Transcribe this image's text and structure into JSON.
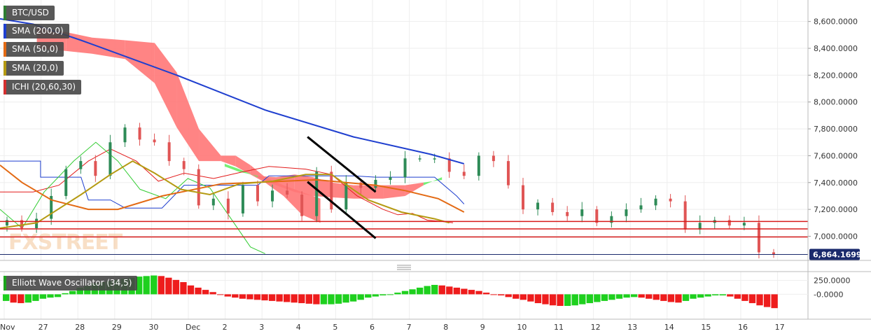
{
  "indicators": [
    {
      "label": "BTC/USD",
      "color": "#2e7d32"
    },
    {
      "label": "SMA (200,0)",
      "color": "#1f3fcf"
    },
    {
      "label": "SMA (50,0)",
      "color": "#e36a14"
    },
    {
      "label": "SMA (20,0)",
      "color": "#b59a12"
    },
    {
      "label": "ICHI (20,60,30)",
      "color": "#d32f2f"
    }
  ],
  "oscillator": {
    "label": "Elliott Wave Oscillator (34,5)",
    "color": "#1aa31a"
  },
  "watermark": "FXSTREET",
  "colors": {
    "up": "#2e8b57",
    "down": "#e05555",
    "cloud_up": "#66ee66",
    "cloud_down": "#ff7777",
    "level": "#d81b1b",
    "channel": "#000000",
    "sma200": "#1f3fcf",
    "sma50": "#e36a14",
    "sma20": "#b59a12",
    "kijun": "#1f3fcf",
    "tenkan": "#e31b1b",
    "chikou": "#33cc33",
    "price_tag": "#1a2a6c"
  },
  "chart_data": [
    {
      "type": "candlestick",
      "title": "BTC/USD",
      "x_ticks": [
        "Nov",
        "27",
        "28",
        "29",
        "30",
        "Dec",
        "2",
        "3",
        "4",
        "5",
        "6",
        "7",
        "8",
        "9",
        "10",
        "11",
        "12",
        "13",
        "14",
        "15",
        "16",
        "17"
      ],
      "y_ticks": [
        "8,600.0000",
        "8,400.0000",
        "8,200.0000",
        "8,000.0000",
        "7,800.0000",
        "7,600.0000",
        "7,400.0000",
        "7,200.0000",
        "7,000.0000"
      ],
      "ylim": [
        6820,
        8760
      ],
      "last_price": "6,864.1699",
      "levels": [
        7110,
        7055,
        6995
      ],
      "channel": [
        [
          [
            8.35,
            7740
          ],
          [
            10.2,
            7330
          ]
        ],
        [
          [
            8.35,
            7405
          ],
          [
            10.2,
            6985
          ]
        ]
      ],
      "close": [
        7120,
        7060,
        7130,
        7300,
        7500,
        7560,
        7450,
        7700,
        7810,
        7720,
        7700,
        7560,
        7500,
        7230,
        7280,
        7170,
        7380,
        7260,
        7340,
        7310,
        7150,
        7480,
        7200,
        7400,
        7360,
        7420,
        7440,
        7580,
        7580,
        7580,
        7480,
        7450,
        7600,
        7560,
        7380,
        7200,
        7250,
        7180,
        7150,
        7200,
        7100,
        7150,
        7200,
        7230,
        7280,
        7260,
        7050,
        7100,
        7120,
        7080,
        7100,
        6880,
        6864
      ],
      "sma200": [
        [
          0,
          8620
        ],
        [
          0.9,
          8580
        ],
        [
          2.2,
          8460
        ],
        [
          4.8,
          8200
        ],
        [
          7.2,
          7940
        ],
        [
          9.6,
          7740
        ],
        [
          11.7,
          7610
        ],
        [
          12.6,
          7540
        ]
      ],
      "sma50": [
        [
          0,
          7530
        ],
        [
          0.6,
          7400
        ],
        [
          1.4,
          7270
        ],
        [
          2.4,
          7200
        ],
        [
          3.2,
          7200
        ],
        [
          4.4,
          7300
        ],
        [
          6.0,
          7390
        ],
        [
          8.6,
          7420
        ],
        [
          10.2,
          7380
        ],
        [
          11.0,
          7340
        ],
        [
          11.9,
          7280
        ],
        [
          12.6,
          7180
        ]
      ],
      "sma20": [
        [
          0,
          7060
        ],
        [
          1.0,
          7100
        ],
        [
          2.2,
          7310
        ],
        [
          3.0,
          7460
        ],
        [
          3.6,
          7560
        ],
        [
          4.2,
          7470
        ],
        [
          4.9,
          7350
        ],
        [
          5.7,
          7310
        ],
        [
          6.5,
          7390
        ],
        [
          7.4,
          7410
        ],
        [
          8.3,
          7460
        ],
        [
          9.0,
          7460
        ],
        [
          10.0,
          7270
        ],
        [
          10.9,
          7180
        ],
        [
          11.8,
          7130
        ],
        [
          12.2,
          7100
        ]
      ],
      "kijun": [
        [
          0,
          7560
        ],
        [
          1.1,
          7560
        ],
        [
          1.1,
          7440
        ],
        [
          2.2,
          7440
        ],
        [
          2.4,
          7270
        ],
        [
          3.0,
          7270
        ],
        [
          3.4,
          7210
        ],
        [
          4.4,
          7210
        ],
        [
          5.0,
          7380
        ],
        [
          7.0,
          7380
        ],
        [
          7.3,
          7450
        ],
        [
          9.6,
          7450
        ],
        [
          10.2,
          7440
        ],
        [
          11.8,
          7440
        ],
        [
          12.4,
          7300
        ],
        [
          12.6,
          7240
        ]
      ],
      "tenkan": [
        [
          0,
          7330
        ],
        [
          0.9,
          7330
        ],
        [
          1.6,
          7380
        ],
        [
          2.4,
          7560
        ],
        [
          3.0,
          7650
        ],
        [
          3.7,
          7560
        ],
        [
          4.3,
          7410
        ],
        [
          5.0,
          7470
        ],
        [
          5.8,
          7430
        ],
        [
          6.6,
          7480
        ],
        [
          7.3,
          7520
        ],
        [
          8.3,
          7500
        ],
        [
          9.0,
          7460
        ],
        [
          9.7,
          7300
        ],
        [
          10.4,
          7200
        ],
        [
          10.8,
          7160
        ],
        [
          11.2,
          7170
        ],
        [
          11.6,
          7120
        ],
        [
          12.0,
          7110
        ],
        [
          12.3,
          7100
        ]
      ],
      "chikou": [
        [
          0,
          7200
        ],
        [
          0.6,
          7060
        ],
        [
          1.2,
          7330
        ],
        [
          2.0,
          7560
        ],
        [
          2.6,
          7700
        ],
        [
          3.2,
          7560
        ],
        [
          3.8,
          7350
        ],
        [
          4.5,
          7280
        ],
        [
          5.1,
          7430
        ],
        [
          5.7,
          7360
        ],
        [
          6.2,
          7160
        ],
        [
          6.8,
          6920
        ],
        [
          7.2,
          6870
        ]
      ],
      "cloud": [
        {
          "x": [
            1.0,
            1.8,
            2.5,
            3.4,
            4.2,
            4.8,
            5.4,
            6.0,
            6.4,
            6.8,
            7.2,
            7.7,
            8.2,
            8.7
          ],
          "a": [
            8400,
            8380,
            8360,
            8320,
            8140,
            7810,
            7560,
            7560,
            7520,
            7460,
            7400,
            7300,
            7160,
            7100
          ],
          "b": [
            8560,
            8520,
            8480,
            8460,
            8440,
            8220,
            7800,
            7600,
            7600,
            7530,
            7440,
            7380,
            7330,
            7280
          ]
        },
        {
          "x": [
            6.1,
            6.5,
            7.0,
            7.5,
            8.0,
            8.5,
            9.0,
            9.6,
            10.4,
            11.0,
            11.5,
            12.0
          ],
          "a": [
            7540,
            7500,
            7440,
            7380,
            7330,
            7300,
            7290,
            7280,
            7280,
            7300,
            7380,
            7440
          ],
          "b": [
            7520,
            7480,
            7450,
            7440,
            7460,
            7440,
            7400,
            7380,
            7380,
            7380,
            7400,
            7420
          ]
        }
      ]
    },
    {
      "type": "bar",
      "title": "Elliott Wave Oscillator (34,5)",
      "y_ticks": [
        "250.0000",
        "-0.0000"
      ],
      "ylim": [
        -450,
        410
      ],
      "values": [
        -120,
        -150,
        -160,
        -150,
        -120,
        -80,
        -60,
        -50,
        20,
        60,
        120,
        150,
        200,
        220,
        240,
        260,
        280,
        300,
        320,
        330,
        340,
        330,
        300,
        260,
        220,
        160,
        120,
        80,
        40,
        0,
        -40,
        -60,
        -80,
        -90,
        -100,
        -110,
        -120,
        -130,
        -140,
        -150,
        -160,
        -170,
        -180,
        -180,
        -180,
        -170,
        -150,
        -130,
        -100,
        -60,
        -40,
        -20,
        0,
        30,
        60,
        90,
        120,
        150,
        170,
        160,
        140,
        120,
        100,
        80,
        60,
        30,
        0,
        -20,
        -50,
        -80,
        -100,
        -130,
        -160,
        -180,
        -200,
        -210,
        -210,
        -200,
        -180,
        -160,
        -140,
        -120,
        -100,
        -80,
        -60,
        -50,
        -60,
        -80,
        -100,
        -120,
        -140,
        -150,
        -120,
        -80,
        -60,
        -40,
        -20,
        -20,
        -40,
        -80,
        -120,
        -160,
        -200,
        -230,
        -250
      ]
    }
  ]
}
